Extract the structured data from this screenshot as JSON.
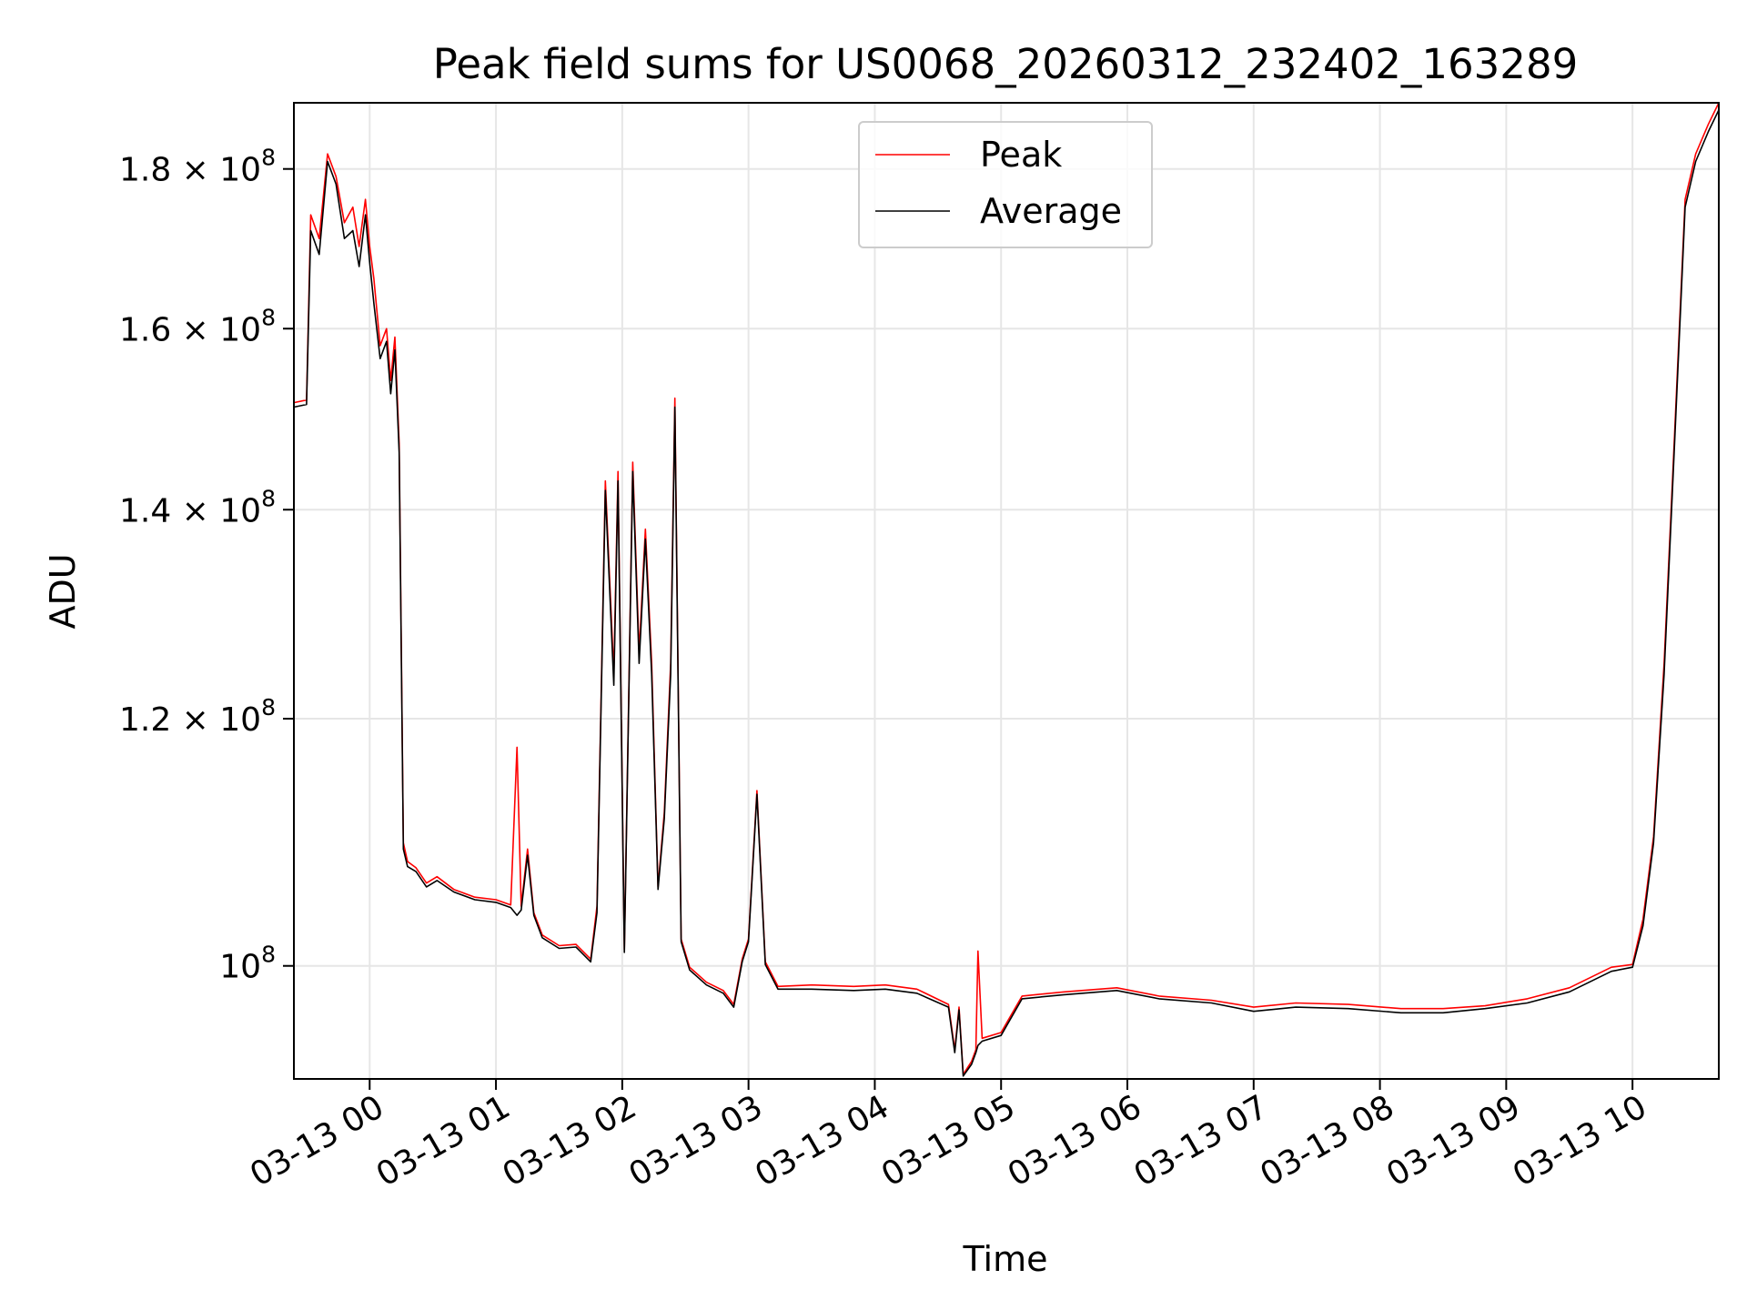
{
  "chart_data": {
    "type": "line",
    "title": "Peak field sums for US0068_20260312_232402_163289",
    "xlabel": "Time",
    "ylabel": "ADU",
    "yscale": "log",
    "ylim": [
      92000000,
      189000000
    ],
    "xlim": [
      "2026-03-12 23:24",
      "2026-03-13 10:41"
    ],
    "grid": true,
    "legend_position": "top-center",
    "x_ticks": [
      {
        "label": "03-13 00",
        "t": "2026-03-13 00:00"
      },
      {
        "label": "03-13 01",
        "t": "2026-03-13 01:00"
      },
      {
        "label": "03-13 02",
        "t": "2026-03-13 02:00"
      },
      {
        "label": "03-13 03",
        "t": "2026-03-13 03:00"
      },
      {
        "label": "03-13 04",
        "t": "2026-03-13 04:00"
      },
      {
        "label": "03-13 05",
        "t": "2026-03-13 05:00"
      },
      {
        "label": "03-13 06",
        "t": "2026-03-13 06:00"
      },
      {
        "label": "03-13 07",
        "t": "2026-03-13 07:00"
      },
      {
        "label": "03-13 08",
        "t": "2026-03-13 08:00"
      },
      {
        "label": "03-13 09",
        "t": "2026-03-13 09:00"
      },
      {
        "label": "03-13 10",
        "t": "2026-03-13 10:00"
      }
    ],
    "y_ticks": [
      {
        "value": 100000000,
        "mant": "10",
        "exp": "8"
      },
      {
        "value": 120000000,
        "mant": "1.2 × 10",
        "exp": "8"
      },
      {
        "value": 140000000,
        "mant": "1.4 × 10",
        "exp": "8"
      },
      {
        "value": 160000000,
        "mant": "1.6 × 10",
        "exp": "8"
      },
      {
        "value": 180000000,
        "mant": "1.8 × 10",
        "exp": "8"
      }
    ],
    "series": [
      {
        "name": "Peak",
        "color": "#ff0000",
        "points": [
          [
            "2026-03-12 23:24",
            151.5
          ],
          [
            "2026-03-12 23:30",
            151.8
          ],
          [
            "2026-03-12 23:32",
            174.0
          ],
          [
            "2026-03-12 23:36",
            171.0
          ],
          [
            "2026-03-12 23:40",
            182.0
          ],
          [
            "2026-03-12 23:44",
            179.0
          ],
          [
            "2026-03-12 23:48",
            173.0
          ],
          [
            "2026-03-12 23:52",
            175.0
          ],
          [
            "2026-03-12 23:55",
            170.0
          ],
          [
            "2026-03-12 23:58",
            176.0
          ],
          [
            "2026-03-13 00:00",
            170.0
          ],
          [
            "2026-03-13 00:02",
            166.0
          ],
          [
            "2026-03-13 00:05",
            158.0
          ],
          [
            "2026-03-13 00:08",
            160.0
          ],
          [
            "2026-03-13 00:10",
            154.0
          ],
          [
            "2026-03-13 00:12",
            159.0
          ],
          [
            "2026-03-13 00:14",
            147.0
          ],
          [
            "2026-03-13 00:16",
            109.5
          ],
          [
            "2026-03-13 00:18",
            108.0
          ],
          [
            "2026-03-13 00:22",
            107.5
          ],
          [
            "2026-03-13 00:27",
            106.3
          ],
          [
            "2026-03-13 00:32",
            106.8
          ],
          [
            "2026-03-13 00:40",
            105.8
          ],
          [
            "2026-03-13 00:50",
            105.2
          ],
          [
            "2026-03-13 01:00",
            105.0
          ],
          [
            "2026-03-13 01:07",
            104.6
          ],
          [
            "2026-03-13 01:10",
            117.5
          ],
          [
            "2026-03-13 01:12",
            104.5
          ],
          [
            "2026-03-13 01:15",
            109.0
          ],
          [
            "2026-03-13 01:18",
            104.0
          ],
          [
            "2026-03-13 01:22",
            102.3
          ],
          [
            "2026-03-13 01:30",
            101.5
          ],
          [
            "2026-03-13 01:38",
            101.6
          ],
          [
            "2026-03-13 01:45",
            100.5
          ],
          [
            "2026-03-13 01:48",
            104.5
          ],
          [
            "2026-03-13 01:52",
            143.0
          ],
          [
            "2026-03-13 01:56",
            124.0
          ],
          [
            "2026-03-13 01:58",
            144.0
          ],
          [
            "2026-03-13 02:01",
            101.2
          ],
          [
            "2026-03-13 02:05",
            145.0
          ],
          [
            "2026-03-13 02:08",
            126.0
          ],
          [
            "2026-03-13 02:11",
            138.0
          ],
          [
            "2026-03-13 02:14",
            125.0
          ],
          [
            "2026-03-13 02:17",
            106.0
          ],
          [
            "2026-03-13 02:20",
            112.0
          ],
          [
            "2026-03-13 02:23",
            125.0
          ],
          [
            "2026-03-13 02:25",
            152.0
          ],
          [
            "2026-03-13 02:28",
            102.0
          ],
          [
            "2026-03-13 02:32",
            99.9
          ],
          [
            "2026-03-13 02:40",
            98.8
          ],
          [
            "2026-03-13 02:48",
            98.2
          ],
          [
            "2026-03-13 02:53",
            97.2
          ],
          [
            "2026-03-13 02:57",
            100.5
          ],
          [
            "2026-03-13 03:00",
            102.0
          ],
          [
            "2026-03-13 03:04",
            113.8
          ],
          [
            "2026-03-13 03:08",
            100.3
          ],
          [
            "2026-03-13 03:14",
            98.5
          ],
          [
            "2026-03-13 03:30",
            98.6
          ],
          [
            "2026-03-13 03:50",
            98.5
          ],
          [
            "2026-03-13 04:05",
            98.6
          ],
          [
            "2026-03-13 04:20",
            98.3
          ],
          [
            "2026-03-13 04:35",
            97.2
          ],
          [
            "2026-03-13 04:38",
            94.0
          ],
          [
            "2026-03-13 04:40",
            97.0
          ],
          [
            "2026-03-13 04:42",
            92.3
          ],
          [
            "2026-03-13 04:46",
            93.2
          ],
          [
            "2026-03-13 04:48",
            94.0
          ],
          [
            "2026-03-13 04:49",
            101.1
          ],
          [
            "2026-03-13 04:51",
            94.8
          ],
          [
            "2026-03-13 05:00",
            95.2
          ],
          [
            "2026-03-13 05:10",
            97.8
          ],
          [
            "2026-03-13 05:30",
            98.1
          ],
          [
            "2026-03-13 05:55",
            98.4
          ],
          [
            "2026-03-13 06:15",
            97.8
          ],
          [
            "2026-03-13 06:40",
            97.5
          ],
          [
            "2026-03-13 07:00",
            97.0
          ],
          [
            "2026-03-13 07:20",
            97.3
          ],
          [
            "2026-03-13 07:45",
            97.2
          ],
          [
            "2026-03-13 08:10",
            96.9
          ],
          [
            "2026-03-13 08:30",
            96.9
          ],
          [
            "2026-03-13 08:50",
            97.1
          ],
          [
            "2026-03-13 09:10",
            97.6
          ],
          [
            "2026-03-13 09:30",
            98.4
          ],
          [
            "2026-03-13 09:50",
            99.9
          ],
          [
            "2026-03-13 10:00",
            100.1
          ],
          [
            "2026-03-13 10:05",
            103.5
          ],
          [
            "2026-03-13 10:10",
            110.0
          ],
          [
            "2026-03-13 10:15",
            125.0
          ],
          [
            "2026-03-13 10:20",
            148.0
          ],
          [
            "2026-03-13 10:25",
            176.0
          ],
          [
            "2026-03-13 10:30",
            182.0
          ],
          [
            "2026-03-13 10:36",
            186.0
          ],
          [
            "2026-03-13 10:41",
            189.0
          ]
        ]
      },
      {
        "name": "Average",
        "color": "#000000",
        "points": [
          [
            "2026-03-12 23:24",
            151.0
          ],
          [
            "2026-03-12 23:30",
            151.3
          ],
          [
            "2026-03-12 23:32",
            172.0
          ],
          [
            "2026-03-12 23:36",
            169.0
          ],
          [
            "2026-03-12 23:40",
            181.0
          ],
          [
            "2026-03-12 23:44",
            178.0
          ],
          [
            "2026-03-12 23:48",
            171.0
          ],
          [
            "2026-03-12 23:52",
            172.0
          ],
          [
            "2026-03-12 23:55",
            167.5
          ],
          [
            "2026-03-12 23:58",
            174.0
          ],
          [
            "2026-03-13 00:00",
            168.0
          ],
          [
            "2026-03-13 00:02",
            163.0
          ],
          [
            "2026-03-13 00:05",
            156.5
          ],
          [
            "2026-03-13 00:08",
            158.5
          ],
          [
            "2026-03-13 00:10",
            152.5
          ],
          [
            "2026-03-13 00:12",
            157.5
          ],
          [
            "2026-03-13 00:14",
            146.0
          ],
          [
            "2026-03-13 00:16",
            109.0
          ],
          [
            "2026-03-13 00:18",
            107.6
          ],
          [
            "2026-03-13 00:22",
            107.2
          ],
          [
            "2026-03-13 00:27",
            106.0
          ],
          [
            "2026-03-13 00:32",
            106.5
          ],
          [
            "2026-03-13 00:40",
            105.6
          ],
          [
            "2026-03-13 00:50",
            105.0
          ],
          [
            "2026-03-13 01:00",
            104.8
          ],
          [
            "2026-03-13 01:07",
            104.4
          ],
          [
            "2026-03-13 01:10",
            103.8
          ],
          [
            "2026-03-13 01:12",
            104.2
          ],
          [
            "2026-03-13 01:15",
            108.5
          ],
          [
            "2026-03-13 01:18",
            103.8
          ],
          [
            "2026-03-13 01:22",
            102.1
          ],
          [
            "2026-03-13 01:30",
            101.3
          ],
          [
            "2026-03-13 01:38",
            101.4
          ],
          [
            "2026-03-13 01:45",
            100.3
          ],
          [
            "2026-03-13 01:48",
            104.0
          ],
          [
            "2026-03-13 01:52",
            142.0
          ],
          [
            "2026-03-13 01:56",
            123.0
          ],
          [
            "2026-03-13 01:58",
            143.0
          ],
          [
            "2026-03-13 02:01",
            101.0
          ],
          [
            "2026-03-13 02:05",
            144.0
          ],
          [
            "2026-03-13 02:08",
            125.0
          ],
          [
            "2026-03-13 02:11",
            137.0
          ],
          [
            "2026-03-13 02:14",
            124.0
          ],
          [
            "2026-03-13 02:17",
            105.8
          ],
          [
            "2026-03-13 02:20",
            111.5
          ],
          [
            "2026-03-13 02:23",
            124.0
          ],
          [
            "2026-03-13 02:25",
            151.0
          ],
          [
            "2026-03-13 02:28",
            101.8
          ],
          [
            "2026-03-13 02:32",
            99.7
          ],
          [
            "2026-03-13 02:40",
            98.6
          ],
          [
            "2026-03-13 02:48",
            98.0
          ],
          [
            "2026-03-13 02:53",
            97.0
          ],
          [
            "2026-03-13 02:57",
            100.3
          ],
          [
            "2026-03-13 03:00",
            101.8
          ],
          [
            "2026-03-13 03:04",
            113.5
          ],
          [
            "2026-03-13 03:08",
            100.1
          ],
          [
            "2026-03-13 03:14",
            98.3
          ],
          [
            "2026-03-13 03:30",
            98.3
          ],
          [
            "2026-03-13 03:50",
            98.2
          ],
          [
            "2026-03-13 04:05",
            98.3
          ],
          [
            "2026-03-13 04:20",
            98.0
          ],
          [
            "2026-03-13 04:35",
            97.0
          ],
          [
            "2026-03-13 04:38",
            93.8
          ],
          [
            "2026-03-13 04:40",
            96.8
          ],
          [
            "2026-03-13 04:42",
            92.2
          ],
          [
            "2026-03-13 04:46",
            93.0
          ],
          [
            "2026-03-13 04:48",
            93.8
          ],
          [
            "2026-03-13 04:49",
            94.3
          ],
          [
            "2026-03-13 04:51",
            94.6
          ],
          [
            "2026-03-13 05:00",
            95.0
          ],
          [
            "2026-03-13 05:10",
            97.6
          ],
          [
            "2026-03-13 05:30",
            97.9
          ],
          [
            "2026-03-13 05:55",
            98.2
          ],
          [
            "2026-03-13 06:15",
            97.6
          ],
          [
            "2026-03-13 06:40",
            97.3
          ],
          [
            "2026-03-13 07:00",
            96.7
          ],
          [
            "2026-03-13 07:20",
            97.0
          ],
          [
            "2026-03-13 07:45",
            96.9
          ],
          [
            "2026-03-13 08:10",
            96.6
          ],
          [
            "2026-03-13 08:30",
            96.6
          ],
          [
            "2026-03-13 08:50",
            96.9
          ],
          [
            "2026-03-13 09:10",
            97.3
          ],
          [
            "2026-03-13 09:30",
            98.1
          ],
          [
            "2026-03-13 09:50",
            99.6
          ],
          [
            "2026-03-13 10:00",
            99.9
          ],
          [
            "2026-03-13 10:05",
            103.0
          ],
          [
            "2026-03-13 10:10",
            109.5
          ],
          [
            "2026-03-13 10:15",
            124.0
          ],
          [
            "2026-03-13 10:20",
            147.0
          ],
          [
            "2026-03-13 10:25",
            175.0
          ],
          [
            "2026-03-13 10:30",
            181.0
          ],
          [
            "2026-03-13 10:36",
            185.0
          ],
          [
            "2026-03-13 10:41",
            188.0
          ]
        ]
      }
    ]
  }
}
